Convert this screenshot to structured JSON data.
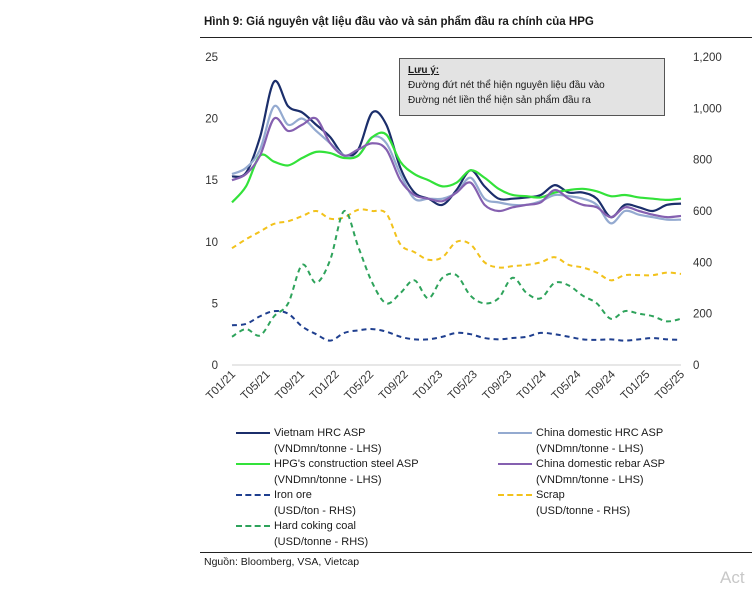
{
  "title": "Hình 9: Giá nguyên vật liệu đầu vào và sản phẩm đầu ra chính của HPG",
  "source": "Nguồn: Bloomberg, VSA, Vietcap",
  "watermark": "Act",
  "note": {
    "heading": "Lưu ý:",
    "line1": "Đường đứt nét thể hiện nguyên liệu đầu vào",
    "line2": "Đường nét liền thể hiện sản phẩm đầu ra"
  },
  "legend": [
    {
      "line1": "Vietnam HRC ASP",
      "line2": "(VNDmn/tonne - LHS)"
    },
    {
      "line1": "China domestic HRC ASP",
      "line2": "(VNDmn/tonne - LHS)"
    },
    {
      "line1": "HPG's construction steel ASP",
      "line2": "(VNDmn/tonne - LHS)"
    },
    {
      "line1": "China domestic rebar ASP",
      "line2": "(VNDmn/tonne - LHS)"
    },
    {
      "line1": "Iron ore",
      "line2": "(USD/ton - RHS)"
    },
    {
      "line1": "Scrap",
      "line2": "(USD/tonne - RHS)"
    },
    {
      "line1": "Hard coking coal",
      "line2": "(USD/tonne - RHS)"
    }
  ],
  "chart_data": {
    "type": "line",
    "title": "Hình 9: Giá nguyên vật liệu đầu vào và sản phẩm đầu ra chính của HPG",
    "x_ticks": [
      "T01/21",
      "T05/21",
      "T09/21",
      "T01/22",
      "T05/22",
      "T09/22",
      "T01/23",
      "T05/23",
      "T09/23",
      "T01/24",
      "T05/24",
      "T09/24",
      "T01/25",
      "T05/25"
    ],
    "y_left_ticks": [
      "0",
      "5",
      "10",
      "15",
      "20",
      "25"
    ],
    "y_left_range": [
      0,
      25
    ],
    "y_right_ticks": [
      "0",
      "200",
      "400",
      "600",
      "800",
      "1,000",
      "1,200"
    ],
    "y_right_range": [
      0,
      1200
    ],
    "grid": false,
    "legend_position": "bottom",
    "series": [
      {
        "name": "Vietnam HRC ASP (VNDmn/tonne - LHS)",
        "axis": "left",
        "style": "solid",
        "color": "#1b2e6b",
        "values": [
          15.3,
          15.6,
          18.5,
          23.0,
          21.0,
          20.5,
          19.5,
          18.5,
          17.0,
          17.5,
          20.5,
          19.5,
          16.0,
          14.0,
          13.5,
          13.0,
          14.2,
          15.8,
          14.5,
          13.5,
          13.5,
          13.6,
          13.8,
          14.6,
          14.0,
          14.0,
          13.5,
          12.0,
          13.0,
          12.8,
          12.5,
          13.0,
          13.1
        ]
      },
      {
        "name": "China domestic HRC ASP (VNDmn/tonne - LHS)",
        "axis": "left",
        "style": "solid",
        "color": "#94aad0",
        "values": [
          15.5,
          16.0,
          17.5,
          21.0,
          19.5,
          20.0,
          19.0,
          18.0,
          17.0,
          17.0,
          18.5,
          18.0,
          15.5,
          13.5,
          13.5,
          13.5,
          14.0,
          15.2,
          13.5,
          13.2,
          13.0,
          13.0,
          13.3,
          13.8,
          13.7,
          13.5,
          13.0,
          11.5,
          12.5,
          12.2,
          12.0,
          11.8,
          11.8
        ]
      },
      {
        "name": "HPG's construction steel ASP (VNDmn/tonne - LHS)",
        "axis": "left",
        "style": "solid",
        "color": "#33e23a",
        "values": [
          13.2,
          14.5,
          17.0,
          16.5,
          16.2,
          16.8,
          17.3,
          17.2,
          16.8,
          17.0,
          18.5,
          18.7,
          16.5,
          15.5,
          15.0,
          14.5,
          14.8,
          15.8,
          15.2,
          14.3,
          13.8,
          13.7,
          13.6,
          14.0,
          14.2,
          14.3,
          14.1,
          13.7,
          13.8,
          13.6,
          13.5,
          13.4,
          13.5
        ]
      },
      {
        "name": "China domestic rebar ASP (VNDmn/tonne - LHS)",
        "axis": "left",
        "style": "solid",
        "color": "#8560b0",
        "values": [
          15.0,
          15.5,
          17.0,
          20.0,
          19.0,
          19.5,
          20.0,
          18.0,
          17.0,
          17.5,
          18.0,
          17.5,
          15.0,
          13.8,
          13.5,
          13.3,
          14.0,
          14.8,
          13.0,
          12.5,
          12.8,
          13.0,
          13.2,
          14.2,
          13.5,
          13.0,
          12.8,
          12.0,
          12.8,
          12.5,
          12.2,
          12.0,
          12.1
        ]
      },
      {
        "name": "Iron ore (USD/ton - RHS)",
        "axis": "right",
        "style": "dashed",
        "color": "#1f3f8f",
        "values": [
          155,
          160,
          190,
          210,
          200,
          150,
          120,
          95,
          125,
          135,
          140,
          130,
          110,
          100,
          100,
          110,
          125,
          120,
          105,
          100,
          105,
          110,
          125,
          120,
          110,
          100,
          98,
          100,
          95,
          100,
          105,
          100,
          98
        ]
      },
      {
        "name": "Scrap (USD/tonne - RHS)",
        "axis": "right",
        "style": "dashed",
        "color": "#f2c21b",
        "values": [
          455,
          490,
          520,
          550,
          560,
          580,
          600,
          570,
          575,
          605,
          600,
          590,
          470,
          440,
          410,
          420,
          480,
          470,
          400,
          380,
          385,
          390,
          400,
          420,
          390,
          380,
          360,
          330,
          350,
          350,
          350,
          360,
          355
        ]
      },
      {
        "name": "Hard coking coal (USD/tonne - RHS)",
        "axis": "right",
        "style": "dashed",
        "color": "#2ea35b",
        "values": [
          110,
          140,
          115,
          190,
          240,
          390,
          320,
          410,
          600,
          460,
          320,
          240,
          280,
          330,
          260,
          340,
          350,
          270,
          240,
          260,
          340,
          280,
          260,
          320,
          310,
          270,
          240,
          180,
          210,
          200,
          190,
          170,
          180
        ]
      }
    ]
  }
}
